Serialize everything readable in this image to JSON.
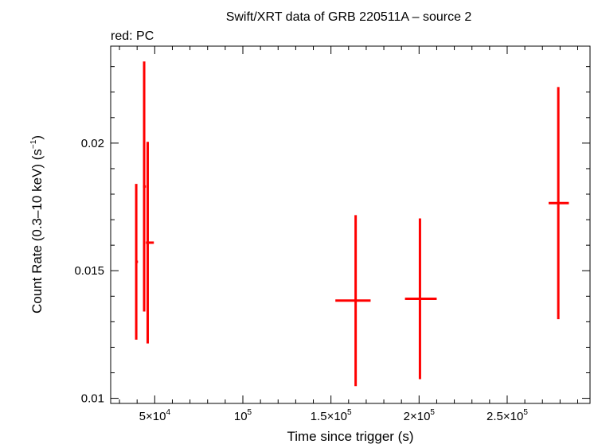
{
  "chart_data": {
    "type": "scatter",
    "title": "Swift/XRT data of GRB 220511A – source 2",
    "subtitle": "red: PC",
    "xlabel": "Time since trigger (s)",
    "ylabel_main": "Count Rate (0.3–10 keV) (s",
    "ylabel_sup": "−1",
    "ylabel_end": ")",
    "xlim": [
      25000,
      297000
    ],
    "ylim": [
      0.0098,
      0.0238
    ],
    "x_ticks": [
      {
        "value": 50000,
        "mantissa": "5×10",
        "exp": "4"
      },
      {
        "value": 100000,
        "mantissa": "10",
        "exp": "5"
      },
      {
        "value": 150000,
        "mantissa": "1.5×10",
        "exp": "5"
      },
      {
        "value": 200000,
        "mantissa": "2×10",
        "exp": "5"
      },
      {
        "value": 250000,
        "mantissa": "2.5×10",
        "exp": "5"
      }
    ],
    "y_ticks": [
      {
        "value": 0.01,
        "label": "0.01"
      },
      {
        "value": 0.015,
        "label": "0.015"
      },
      {
        "value": 0.02,
        "label": "0.02"
      }
    ],
    "grid": false,
    "series": [
      {
        "color": "#ff0000",
        "points": [
          {
            "x": 39500,
            "xerr": [
              500,
              1000
            ],
            "y": 0.01535,
            "yerr": [
              0.00305,
              0.00305
            ]
          },
          {
            "x": 44000,
            "xerr": [
              700,
              1000
            ],
            "y": 0.0183,
            "yerr": [
              0.0049,
              0.0049
            ]
          },
          {
            "x": 46000,
            "xerr": [
              1000,
              3500
            ],
            "y": 0.0161,
            "yerr": [
              0.00395,
              0.00395
            ]
          },
          {
            "x": 164000,
            "xerr": [
              11500,
              8500
            ],
            "y": 0.01383,
            "yerr": [
              0.00335,
              0.00335
            ]
          },
          {
            "x": 200500,
            "xerr": [
              8500,
              9500
            ],
            "y": 0.0139,
            "yerr": [
              0.00315,
              0.00315
            ]
          },
          {
            "x": 279000,
            "xerr": [
              5500,
              6000
            ],
            "y": 0.01765,
            "yerr": [
              0.00455,
              0.00455
            ]
          }
        ]
      }
    ]
  }
}
